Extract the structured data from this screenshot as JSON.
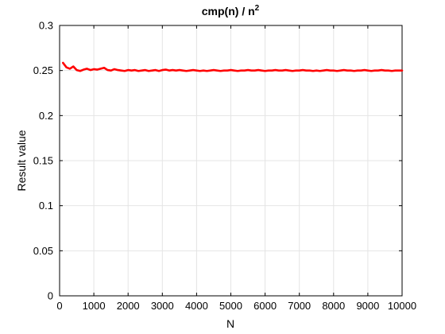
{
  "chart_data": {
    "type": "line",
    "title": "cmp(n) / n",
    "title_superscript": "2",
    "xlabel": "N",
    "ylabel": "Result value",
    "xlim": [
      0,
      10000
    ],
    "ylim": [
      0,
      0.3
    ],
    "x_ticks": [
      "0",
      "1000",
      "2000",
      "3000",
      "4000",
      "5000",
      "6000",
      "7000",
      "8000",
      "9000",
      "10000"
    ],
    "y_ticks": [
      "0",
      "0.05",
      "0.1",
      "0.15",
      "0.2",
      "0.25",
      "0.3"
    ],
    "grid": true,
    "series": [
      {
        "color": "#ff0000",
        "x": [
          100,
          200,
          300,
          400,
          500,
          600,
          700,
          800,
          900,
          1000,
          1100,
          1200,
          1300,
          1400,
          1500,
          1600,
          1700,
          1800,
          1900,
          2000,
          2100,
          2200,
          2300,
          2400,
          2500,
          2600,
          2700,
          2800,
          2900,
          3000,
          3100,
          3200,
          3300,
          3400,
          3500,
          3600,
          3700,
          3800,
          3900,
          4000,
          4100,
          4200,
          4300,
          4400,
          4500,
          4600,
          4700,
          4800,
          4900,
          5000,
          5100,
          5200,
          5300,
          5400,
          5500,
          5600,
          5700,
          5800,
          5900,
          6000,
          6100,
          6200,
          6300,
          6400,
          6500,
          6600,
          6700,
          6800,
          6900,
          7000,
          7100,
          7200,
          7300,
          7400,
          7500,
          7600,
          7700,
          7800,
          7900,
          8000,
          8100,
          8200,
          8300,
          8400,
          8500,
          8600,
          8700,
          8800,
          8900,
          9000,
          9100,
          9200,
          9300,
          9400,
          9500,
          9600,
          9700,
          9800,
          9900,
          10000
        ],
        "values": [
          0.2585,
          0.2535,
          0.252,
          0.2545,
          0.2505,
          0.2495,
          0.251,
          0.252,
          0.2505,
          0.2515,
          0.251,
          0.252,
          0.253,
          0.2505,
          0.25,
          0.2515,
          0.2505,
          0.25,
          0.2495,
          0.2505,
          0.25,
          0.2505,
          0.2495,
          0.25,
          0.2505,
          0.2495,
          0.25,
          0.2505,
          0.2495,
          0.2505,
          0.251,
          0.25,
          0.2505,
          0.25,
          0.2505,
          0.25,
          0.2495,
          0.25,
          0.2505,
          0.25,
          0.2495,
          0.25,
          0.2495,
          0.25,
          0.2505,
          0.25,
          0.2495,
          0.25,
          0.25,
          0.2505,
          0.25,
          0.2495,
          0.25,
          0.25,
          0.2505,
          0.25,
          0.25,
          0.2505,
          0.25,
          0.2495,
          0.25,
          0.25,
          0.2505,
          0.25,
          0.25,
          0.2505,
          0.25,
          0.2495,
          0.25,
          0.25,
          0.2505,
          0.25,
          0.25,
          0.2495,
          0.25,
          0.2495,
          0.25,
          0.2505,
          0.25,
          0.25,
          0.2495,
          0.25,
          0.2505,
          0.25,
          0.25,
          0.2495,
          0.25,
          0.25,
          0.2505,
          0.25,
          0.2495,
          0.25,
          0.25,
          0.2505,
          0.25,
          0.25,
          0.2495,
          0.25,
          0.25,
          0.25
        ]
      }
    ]
  }
}
